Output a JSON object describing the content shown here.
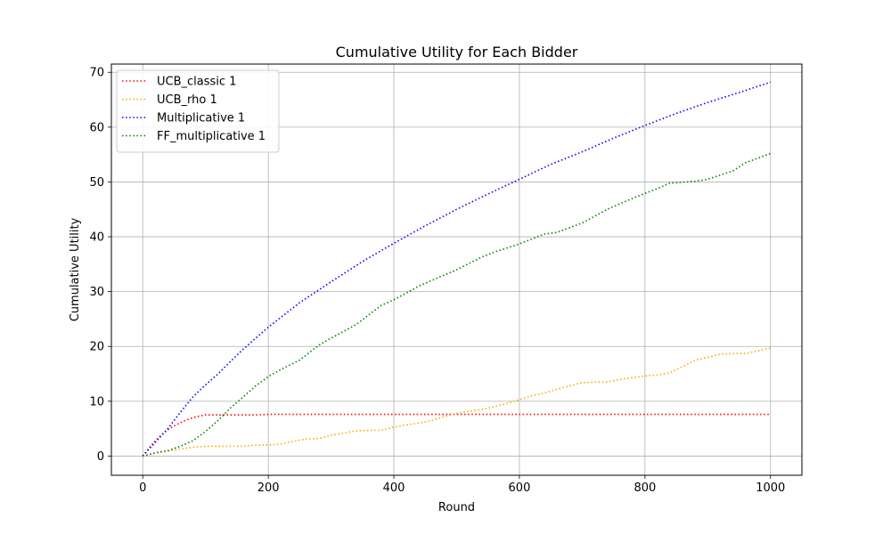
{
  "chart_data": {
    "type": "line",
    "title": "Cumulative Utility for Each Bidder",
    "xlabel": "Round",
    "ylabel": "Cumulative Utility",
    "xlim": [
      -50,
      1050
    ],
    "ylim": [
      -3.5,
      71.5
    ],
    "xticks": [
      0,
      200,
      400,
      600,
      800,
      1000
    ],
    "yticks": [
      0,
      10,
      20,
      30,
      40,
      50,
      60,
      70
    ],
    "grid": true,
    "legend_position": "top-left",
    "line_style": "dotted",
    "series": [
      {
        "name": "UCB_classic 1",
        "color": "#ff0000",
        "x": [
          0,
          10,
          20,
          30,
          40,
          50,
          60,
          70,
          80,
          90,
          100,
          120,
          140,
          160,
          180,
          200,
          300,
          400,
          500,
          600,
          700,
          800,
          900,
          1000
        ],
        "y": [
          0,
          1.5,
          2.8,
          3.9,
          4.8,
          5.5,
          6.1,
          6.6,
          7.0,
          7.3,
          7.5,
          7.5,
          7.5,
          7.5,
          7.5,
          7.6,
          7.6,
          7.6,
          7.6,
          7.6,
          7.6,
          7.6,
          7.6,
          7.6
        ]
      },
      {
        "name": "UCB_rho 1",
        "color": "#ffa500",
        "x": [
          0,
          20,
          40,
          60,
          80,
          100,
          120,
          140,
          160,
          180,
          200,
          220,
          240,
          260,
          280,
          300,
          320,
          340,
          360,
          380,
          400,
          420,
          440,
          460,
          480,
          500,
          520,
          540,
          560,
          580,
          600,
          620,
          640,
          660,
          680,
          700,
          720,
          740,
          760,
          780,
          800,
          820,
          840,
          860,
          880,
          900,
          920,
          940,
          960,
          980,
          1000
        ],
        "y": [
          0,
          0.5,
          0.9,
          1.3,
          1.6,
          1.8,
          1.8,
          1.8,
          1.8,
          2.0,
          2.0,
          2.2,
          2.7,
          3.1,
          3.2,
          3.8,
          4.2,
          4.6,
          4.7,
          4.7,
          5.3,
          5.7,
          6.0,
          6.5,
          7.2,
          7.8,
          8.2,
          8.5,
          9.0,
          9.6,
          10.3,
          11.0,
          11.5,
          12.2,
          12.8,
          13.4,
          13.5,
          13.5,
          14.0,
          14.3,
          14.6,
          14.8,
          15.2,
          16.3,
          17.5,
          18.0,
          18.6,
          18.7,
          18.7,
          19.2,
          19.7
        ]
      },
      {
        "name": "Multiplicative 1",
        "color": "#0000ff",
        "x": [
          0,
          20,
          40,
          60,
          80,
          100,
          120,
          140,
          160,
          180,
          200,
          250,
          300,
          350,
          400,
          450,
          500,
          550,
          600,
          650,
          700,
          750,
          800,
          850,
          900,
          950,
          1000
        ],
        "y": [
          0,
          2.5,
          5.0,
          8.0,
          10.8,
          13.0,
          15.0,
          17.3,
          19.5,
          21.5,
          23.5,
          28.0,
          31.8,
          35.5,
          38.8,
          42.0,
          45.0,
          47.8,
          50.5,
          53.2,
          55.5,
          58.0,
          60.3,
          62.5,
          64.5,
          66.3,
          68.2
        ]
      },
      {
        "name": "FF_multiplicative 1",
        "color": "#008000",
        "x": [
          0,
          20,
          40,
          60,
          80,
          100,
          120,
          140,
          160,
          180,
          200,
          220,
          250,
          280,
          300,
          340,
          380,
          400,
          440,
          460,
          500,
          540,
          560,
          600,
          640,
          660,
          700,
          740,
          780,
          820,
          840,
          880,
          900,
          940,
          960,
          1000
        ],
        "y": [
          0,
          0.6,
          1.0,
          1.8,
          2.8,
          4.5,
          6.5,
          8.8,
          10.8,
          12.8,
          14.5,
          15.8,
          17.5,
          20.2,
          21.5,
          24.0,
          27.5,
          28.5,
          31.0,
          32.0,
          34.0,
          36.3,
          37.2,
          38.7,
          40.5,
          40.8,
          42.5,
          45.0,
          47.0,
          48.8,
          49.8,
          50.1,
          50.5,
          52.0,
          53.5,
          55.2
        ]
      }
    ]
  }
}
